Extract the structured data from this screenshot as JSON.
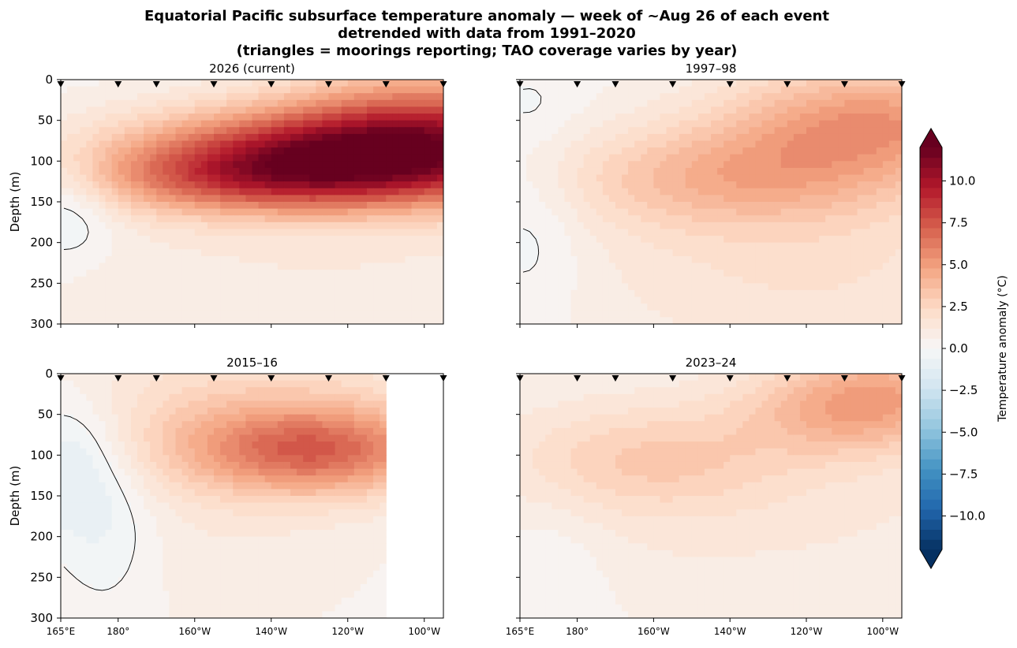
{
  "figure": {
    "title_lines": [
      "Equatorial Pacific subsurface temperature anomaly — week of ~Aug 26 of each event",
      "detrended with data from 1991–2020",
      "(triangles = moorings reporting; TAO coverage varies by year)"
    ]
  },
  "colors": {
    "cold_end": "#053061",
    "neutral": "#f7f7f7",
    "warm_end": "#67001f",
    "contour": "#000000"
  },
  "chart_data": [
    {
      "type": "heatmap",
      "title": "2026 (current)",
      "ylabel": "Depth (m)",
      "xlabel": "",
      "x_ticks": [
        "165°E",
        "180°",
        "160°W",
        "140°W",
        "120°W",
        "100°W"
      ],
      "y_ticks": [
        "0",
        "50",
        "100",
        "150",
        "200",
        "250",
        "300"
      ],
      "ylim": [
        300,
        0
      ],
      "mooring_longitudes_degE": [
        165,
        180,
        190,
        205,
        220,
        235,
        250,
        265
      ],
      "blobs": [
        {
          "lon": 242,
          "depth": 95,
          "wlon": 40,
          "wdep": 42,
          "amp": 10.3
        },
        {
          "lon": 262,
          "depth": 45,
          "wlon": 26,
          "wdep": 55,
          "amp": 4.2
        },
        {
          "lon": 210,
          "depth": 125,
          "wlon": 28,
          "wdep": 30,
          "amp": 3.2
        },
        {
          "lon": 230,
          "depth": 240,
          "wlon": 60,
          "wdep": 80,
          "amp": 0.8
        },
        {
          "lon": 167,
          "depth": 155,
          "wlon": 9,
          "wdep": 45,
          "amp": -1.7
        }
      ]
    },
    {
      "type": "heatmap",
      "title": "1997–98",
      "ylabel": "",
      "xlabel": "",
      "x_ticks": [
        "165°E",
        "180°",
        "160°W",
        "140°W",
        "120°W",
        "100°W"
      ],
      "y_ticks": [
        "0",
        "50",
        "100",
        "150",
        "200",
        "250",
        "300"
      ],
      "ylim": [
        300,
        0
      ],
      "mooring_longitudes_degE": [
        165,
        180,
        190,
        205,
        220,
        235,
        250,
        265
      ],
      "blobs": [
        {
          "lon": 258,
          "depth": 50,
          "wlon": 28,
          "wdep": 50,
          "amp": 4.6
        },
        {
          "lon": 220,
          "depth": 120,
          "wlon": 32,
          "wdep": 45,
          "amp": 3.2
        },
        {
          "lon": 240,
          "depth": 230,
          "wlon": 45,
          "wdep": 90,
          "amp": 1.5
        },
        {
          "lon": 168,
          "depth": 180,
          "wlon": 10,
          "wdep": 80,
          "amp": -1.0
        },
        {
          "lon": 168,
          "depth": 30,
          "wlon": 8,
          "wdep": 30,
          "amp": -0.4
        }
      ]
    },
    {
      "type": "heatmap",
      "title": "2015–16",
      "ylabel": "Depth (m)",
      "xlabel": "",
      "x_ticks": [
        "165°E",
        "180°",
        "160°W",
        "140°W",
        "120°W",
        "100°W"
      ],
      "y_ticks": [
        "0",
        "50",
        "100",
        "150",
        "200",
        "250",
        "300"
      ],
      "ylim": [
        300,
        0
      ],
      "data_east_limit_degE": 250,
      "mooring_longitudes_degE": [
        165,
        180,
        190,
        205,
        220,
        235,
        250,
        265
      ],
      "blobs": [
        {
          "lon": 232,
          "depth": 95,
          "wlon": 24,
          "wdep": 38,
          "amp": 5.4
        },
        {
          "lon": 215,
          "depth": 50,
          "wlon": 35,
          "wdep": 70,
          "amp": 2.2
        },
        {
          "lon": 205,
          "depth": 220,
          "wlon": 30,
          "wdep": 80,
          "amp": 0.6
        },
        {
          "lon": 168,
          "depth": 110,
          "wlon": 10,
          "wdep": 60,
          "amp": -2.0
        },
        {
          "lon": 178,
          "depth": 200,
          "wlon": 10,
          "wdep": 70,
          "amp": -1.0
        }
      ]
    },
    {
      "type": "heatmap",
      "title": "2023–24",
      "ylabel": "",
      "xlabel": "",
      "x_ticks": [
        "165°E",
        "180°",
        "160°W",
        "140°W",
        "120°W",
        "100°W"
      ],
      "y_ticks": [
        "0",
        "50",
        "100",
        "150",
        "200",
        "250",
        "300"
      ],
      "ylim": [
        300,
        0
      ],
      "mooring_longitudes_degE": [
        165,
        180,
        190,
        205,
        220,
        235,
        250,
        265
      ],
      "blobs": [
        {
          "lon": 262,
          "depth": 25,
          "wlon": 18,
          "wdep": 45,
          "amp": 3.0
        },
        {
          "lon": 245,
          "depth": 45,
          "wlon": 18,
          "wdep": 40,
          "amp": 2.0
        },
        {
          "lon": 200,
          "depth": 105,
          "wlon": 25,
          "wdep": 45,
          "amp": 2.0
        },
        {
          "lon": 220,
          "depth": 150,
          "wlon": 70,
          "wdep": 110,
          "amp": 1.0
        },
        {
          "lon": 172,
          "depth": 240,
          "wlon": 12,
          "wdep": 70,
          "amp": -0.8
        }
      ]
    }
  ],
  "colorbar": {
    "label": "Temperature anomaly (°C)",
    "range": [
      -12,
      12
    ],
    "ticks": [
      "−10.0",
      "−7.5",
      "−5.0",
      "−2.5",
      "0.0",
      "2.5",
      "5.0",
      "7.5",
      "10.0"
    ],
    "extend": "both"
  }
}
